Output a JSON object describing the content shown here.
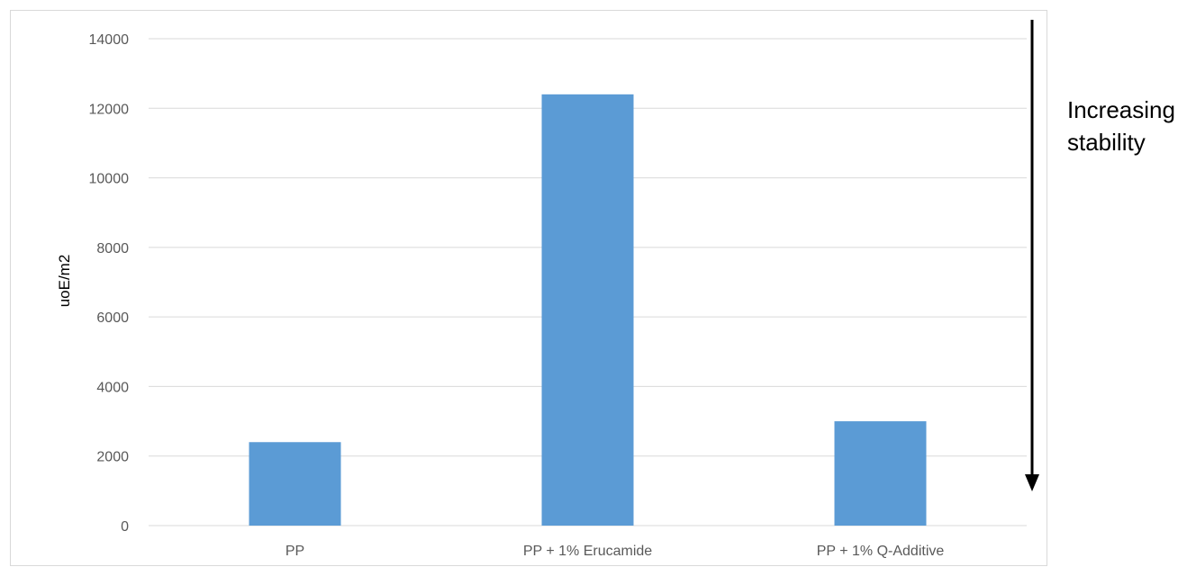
{
  "chart_data": {
    "type": "bar",
    "title": "",
    "xlabel": "",
    "ylabel": "uoE/m2",
    "categories": [
      "PP",
      "PP + 1% Erucamide",
      "PP + 1% Q-Additive"
    ],
    "series": [
      {
        "values": [
          2400,
          12400,
          3000
        ]
      }
    ],
    "ylim": [
      0,
      14000
    ],
    "yticks": [
      "0",
      "2000",
      "4000",
      "6000",
      "8000",
      "10000",
      "12000",
      "14000"
    ],
    "grid": true,
    "legend": "none",
    "bar_color": "#5b9bd5",
    "annotation": {
      "line1": "Increasing",
      "line2": "stability",
      "arrow_direction": "down"
    }
  }
}
